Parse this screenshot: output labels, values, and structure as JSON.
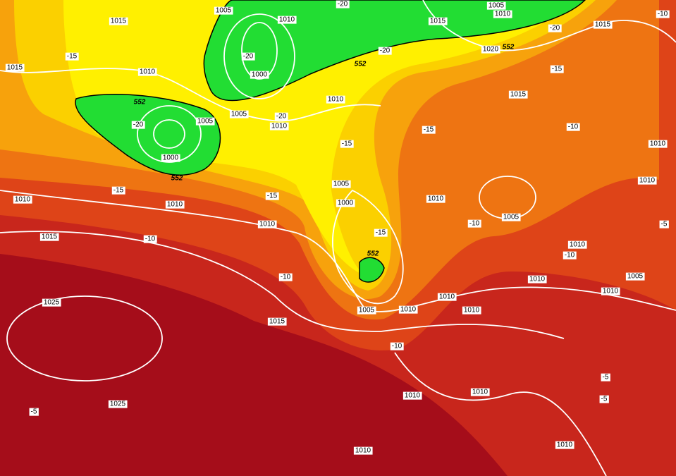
{
  "isobar_labels": [
    1005,
    1010,
    1015,
    1015,
    1010,
    1000,
    1010,
    1005,
    1005,
    1010,
    1000,
    1005,
    1000,
    1010,
    1010,
    1010,
    1015,
    1025,
    1015,
    1005,
    1010,
    1010,
    1010,
    1010,
    1005,
    1015,
    1015,
    1020,
    1005,
    1010,
    1015,
    1010,
    1010,
    1010,
    1005,
    1010,
    1010,
    1025,
    1010,
    1010,
    1010,
    1010
  ],
  "temperature_labels": [
    -15,
    -20,
    -20,
    -20,
    -20,
    -15,
    -20,
    -20,
    -15,
    -10,
    -15,
    -15,
    -15,
    -15,
    -10,
    -10,
    -10,
    -10,
    -10,
    -10,
    -5,
    -5,
    -5,
    -5
  ],
  "height_labels": [
    552,
    552,
    552,
    552,
    552
  ]
}
